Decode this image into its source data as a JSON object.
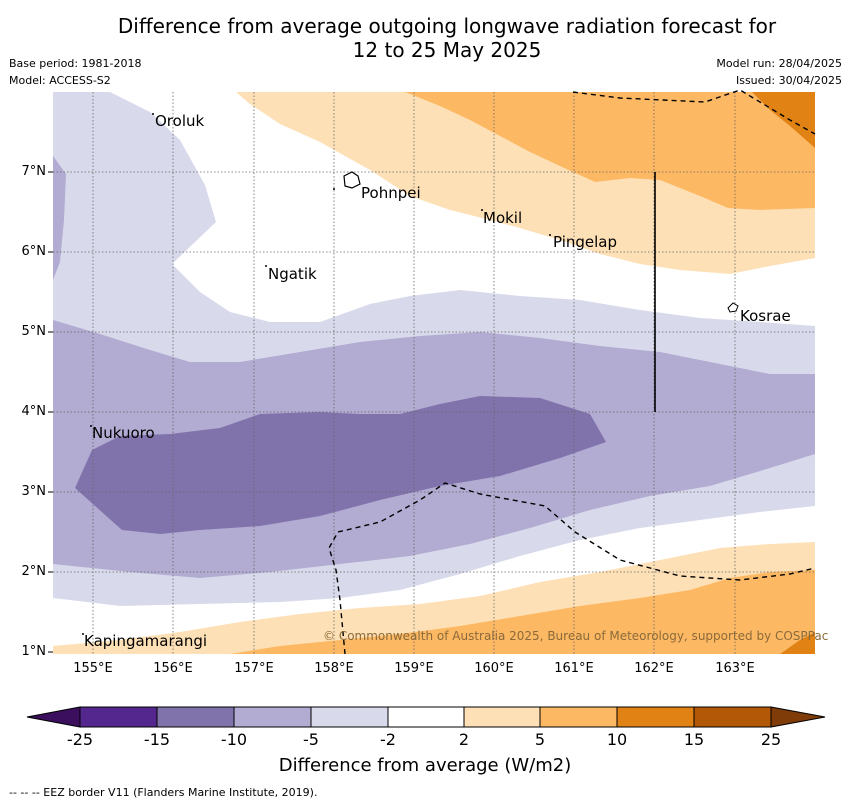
{
  "title": {
    "line1": "Difference from average outgoing longwave radiation forecast for",
    "line2": "12 to 25 May 2025"
  },
  "meta_left": {
    "base_period": "Base period: 1981-2018",
    "model": "Model: ACCESS-S2"
  },
  "meta_right": {
    "model_run": "Model run: 28/04/2025",
    "issued": "Issued: 30/04/2025"
  },
  "map": {
    "lat_labels": [
      "7°N",
      "6°N",
      "5°N",
      "4°N",
      "3°N",
      "2°N",
      "1°N"
    ],
    "lon_labels": [
      "155°E",
      "156°E",
      "157°E",
      "158°E",
      "159°E",
      "160°E",
      "161°E",
      "162°E",
      "163°E"
    ],
    "places": [
      {
        "name": "Oroluk"
      },
      {
        "name": "Pohnpei"
      },
      {
        "name": "Mokil"
      },
      {
        "name": "Pingelap"
      },
      {
        "name": "Ngatik"
      },
      {
        "name": "Kosrae"
      },
      {
        "name": "Nukuoro"
      },
      {
        "name": "Kapingamarangi"
      }
    ],
    "copyright": "© Commonwealth of Australia 2025, Bureau of Meteorology, supported by COSPPac"
  },
  "colorbar": {
    "ticks": [
      "-25",
      "-15",
      "-10",
      "-5",
      "-2",
      "2",
      "5",
      "10",
      "15",
      "25"
    ],
    "colors": [
      "#3b0f5e",
      "#54278f",
      "#8073ac",
      "#b2abd2",
      "#d8daeb",
      "#ffffff",
      "#fee0b6",
      "#fdb863",
      "#e08214",
      "#b35806",
      "#7f3b08"
    ],
    "label": "Difference from average (W/m2)"
  },
  "footer": "--  --  -- EEZ border V11 (Flanders Marine Institute, 2019)."
}
